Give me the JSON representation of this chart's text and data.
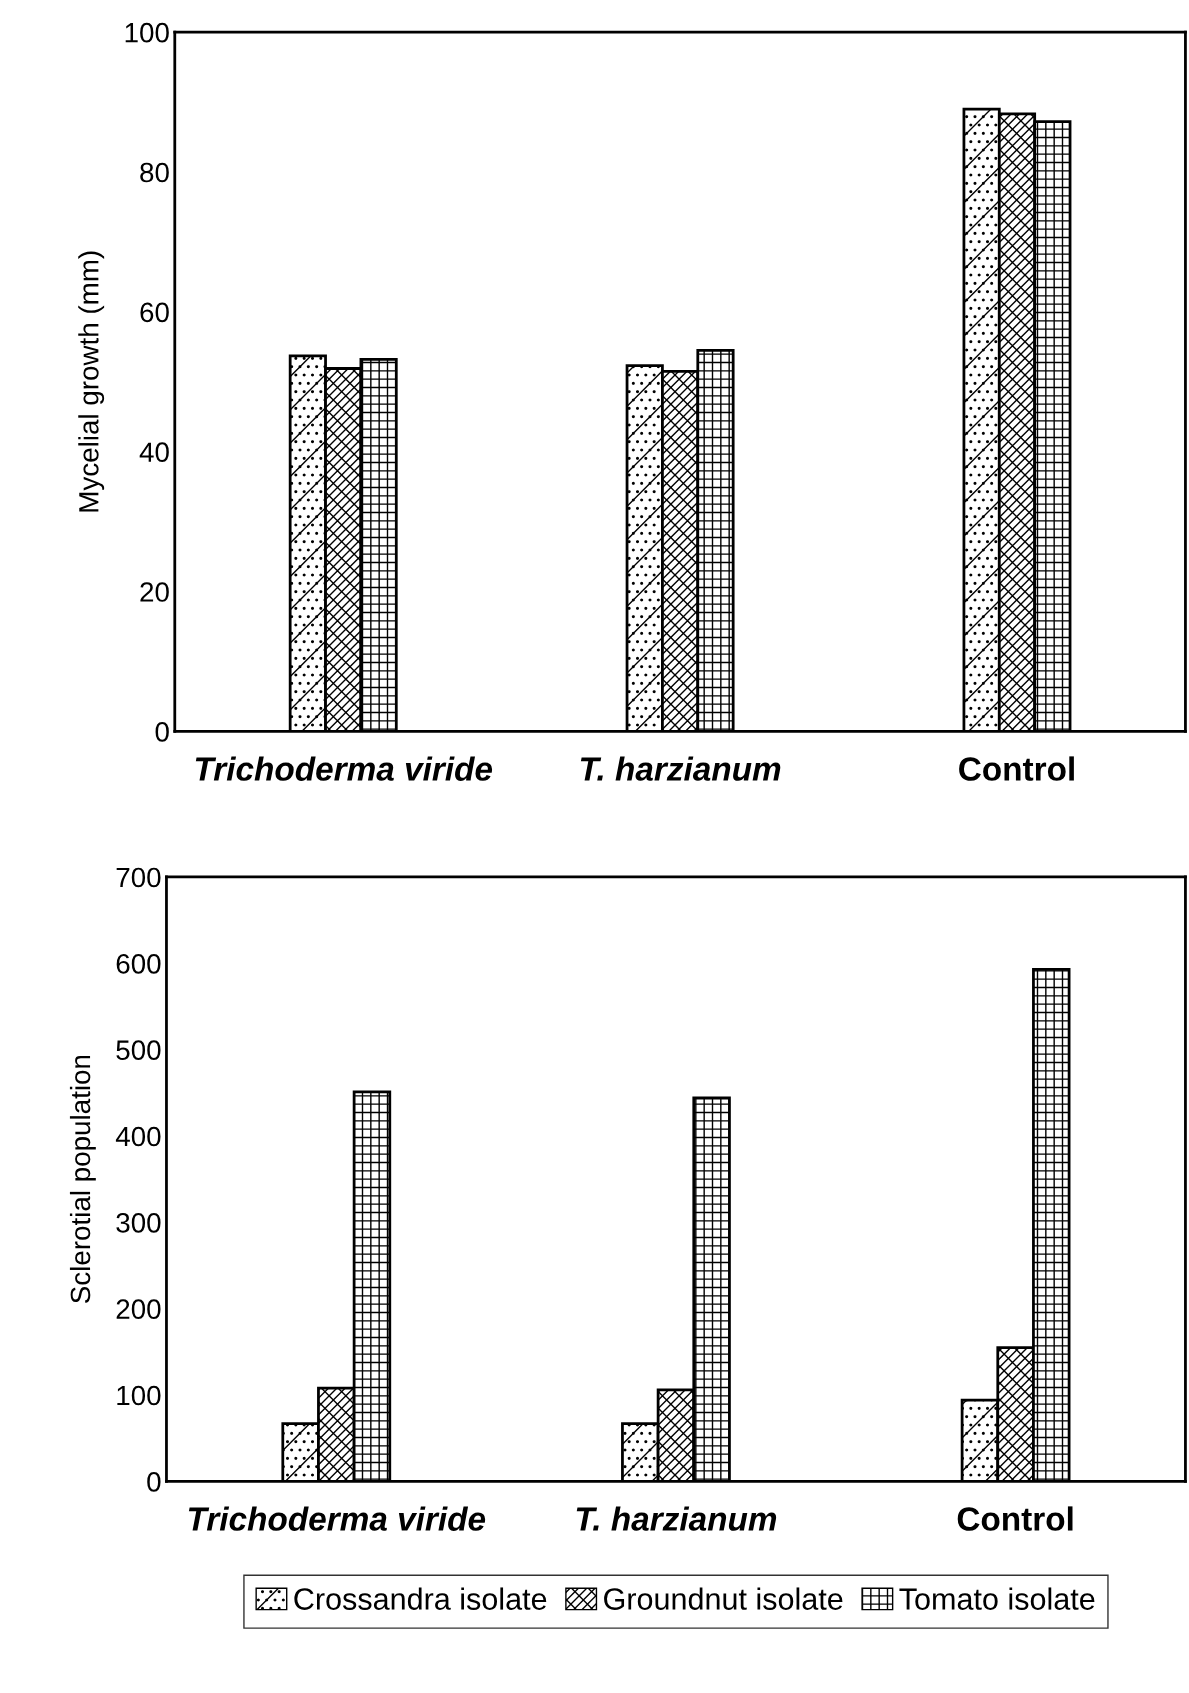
{
  "chart_data": [
    {
      "type": "bar",
      "ylabel": "Mycelial growth (mm)",
      "categories": [
        "Trichoderma viride",
        "T. harzianum",
        "Control"
      ],
      "ylim": [
        0,
        100
      ],
      "yticks": [
        0,
        20,
        40,
        60,
        80,
        100
      ],
      "grid": false,
      "series": [
        {
          "color": "#000000",
          "values": [
            53.7,
            52.3,
            89.0
          ]
        },
        {
          "color": "#000000",
          "values": [
            51.9,
            51.5,
            88.3
          ]
        },
        {
          "color": "#000000",
          "values": [
            53.2,
            54.5,
            87.2
          ]
        }
      ]
    },
    {
      "type": "bar",
      "ylabel": "Sclerotial population",
      "categories": [
        "Trichoderma viride",
        "T. harzianum",
        "Control"
      ],
      "ylim": [
        0,
        700
      ],
      "yticks": [
        0,
        100,
        200,
        300,
        400,
        500,
        600,
        700
      ],
      "grid": false,
      "legend": "bottom",
      "series": [
        {
          "name": "Crossandra isolate",
          "color": "#000000",
          "values": [
            67,
            67,
            94
          ]
        },
        {
          "name": "Groundnut isolate",
          "color": "#000000",
          "values": [
            108,
            106,
            155
          ]
        },
        {
          "name": "Tomato isolate",
          "color": "#000000",
          "values": [
            451,
            444,
            593
          ]
        }
      ]
    }
  ]
}
